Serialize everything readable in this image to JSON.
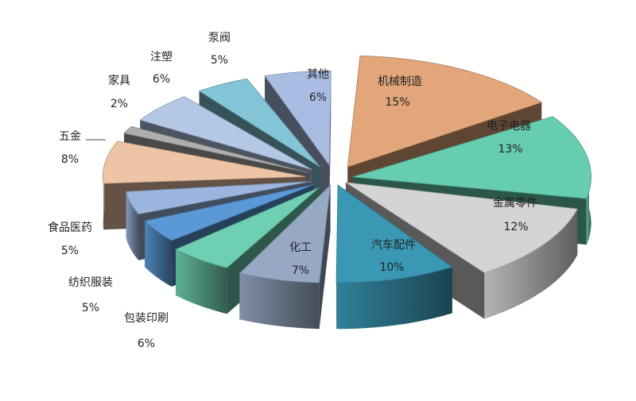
{
  "chart_data": {
    "type": "pie",
    "style": "3d-exploded",
    "title": "",
    "slices": [
      {
        "label": "机械制造",
        "value": 15,
        "pct_label": "15%",
        "color": "#E2A67A"
      },
      {
        "label": "电子电器",
        "value": 13,
        "pct_label": "13%",
        "color": "#66CDB1"
      },
      {
        "label": "金属零件",
        "value": 12,
        "pct_label": "12%",
        "color": "#D4D4D4"
      },
      {
        "label": "汽车配件",
        "value": 10,
        "pct_label": "10%",
        "color": "#3A98B4"
      },
      {
        "label": "化工",
        "value": 7,
        "pct_label": "7%",
        "color": "#96A8C4"
      },
      {
        "label": "包装印刷",
        "value": 6,
        "pct_label": "6%",
        "color": "#6ECFB2"
      },
      {
        "label": "纺织服装",
        "value": 5,
        "pct_label": "5%",
        "color": "#5B99D6"
      },
      {
        "label": "食品医药",
        "value": 5,
        "pct_label": "5%",
        "color": "#9BB5DE"
      },
      {
        "label": "五金",
        "value": 8,
        "pct_label": "8%",
        "color": "#EEC4A6"
      },
      {
        "label": "家具",
        "value": 2,
        "pct_label": "2%",
        "color": "#AEAEAE"
      },
      {
        "label": "注塑",
        "value": 6,
        "pct_label": "6%",
        "color": "#B4C8E6"
      },
      {
        "label": "泵阀",
        "value": 5,
        "pct_label": "5%",
        "color": "#83C5D7"
      },
      {
        "label": "其他",
        "value": 6,
        "pct_label": "6%",
        "color": "#A9BCE2"
      }
    ]
  }
}
